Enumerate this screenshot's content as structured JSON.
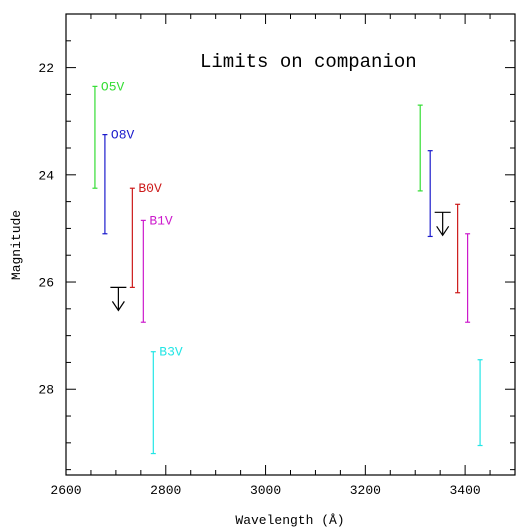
{
  "chart_data": {
    "type": "errorbar",
    "title": "Limits on companion",
    "xlabel": "Wavelength (Å)",
    "ylabel": "Magnitude",
    "xlim": [
      2600,
      3500
    ],
    "ylim": [
      29.6,
      21.0
    ],
    "y_inverted": true,
    "x_ticks": [
      2600,
      2800,
      3000,
      3200,
      3400
    ],
    "y_ticks": [
      22,
      24,
      26,
      28
    ],
    "grid": false,
    "series": [
      {
        "name": "O5V",
        "color": "#33dd33",
        "bars": [
          {
            "x": 2658,
            "y_low": 22.35,
            "y_high": 24.25
          },
          {
            "x": 3310,
            "y_low": 22.7,
            "y_high": 24.3
          }
        ]
      },
      {
        "name": "O8V",
        "color": "#1a1acc",
        "bars": [
          {
            "x": 2678,
            "y_low": 23.25,
            "y_high": 25.1
          },
          {
            "x": 3330,
            "y_low": 23.55,
            "y_high": 25.15
          }
        ]
      },
      {
        "name": "B0V",
        "color": "#cc1a1a",
        "bars": [
          {
            "x": 2733,
            "y_low": 24.25,
            "y_high": 26.1
          },
          {
            "x": 3385,
            "y_low": 24.55,
            "y_high": 26.2
          }
        ]
      },
      {
        "name": "B1V",
        "color": "#cc1acc",
        "bars": [
          {
            "x": 2755,
            "y_low": 24.85,
            "y_high": 26.75
          },
          {
            "x": 3405,
            "y_low": 25.1,
            "y_high": 26.75
          }
        ]
      },
      {
        "name": "B3V",
        "color": "#22e5e5",
        "bars": [
          {
            "x": 2775,
            "y_low": 27.3,
            "y_high": 29.2
          },
          {
            "x": 3430,
            "y_low": 27.45,
            "y_high": 29.05
          }
        ]
      }
    ],
    "upper_limits": [
      {
        "x": 2705,
        "y": 26.1
      },
      {
        "x": 3355,
        "y": 24.7
      }
    ]
  }
}
